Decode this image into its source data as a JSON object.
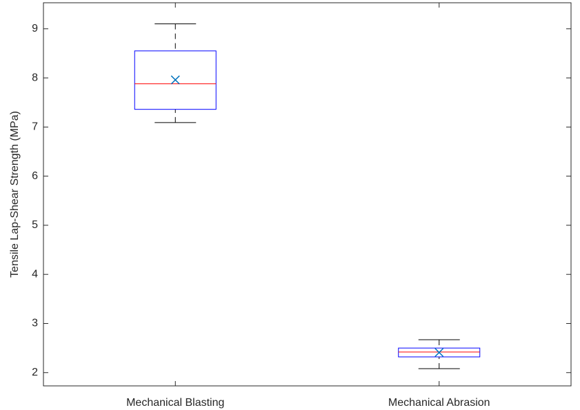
{
  "chart_data": {
    "type": "box",
    "y_label": "Tensile Lap-Shear Strength (MPa)",
    "categories": [
      "Mechanical Blasting",
      "Mechanical Abrasion"
    ],
    "whisker_low": [
      7.09,
      2.08
    ],
    "q1": [
      7.36,
      2.32
    ],
    "median": [
      7.88,
      2.42
    ],
    "q3": [
      8.55,
      2.5
    ],
    "whisker_high": [
      9.1,
      2.67
    ],
    "mean": [
      7.96,
      2.41
    ],
    "box_color": "#0000ff",
    "median_color": "#ff0000",
    "mean_color": "#0072bd",
    "whisker_color": "#000000",
    "ylim": [
      1.73,
      9.53
    ],
    "yticks": [
      2,
      3,
      4,
      5,
      6,
      7,
      8,
      9
    ],
    "grid": false
  }
}
